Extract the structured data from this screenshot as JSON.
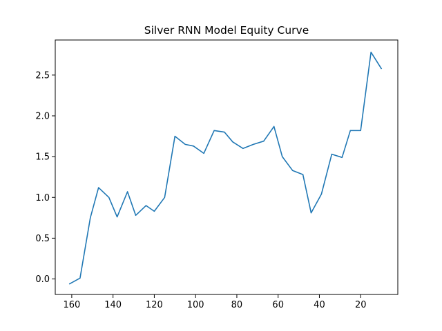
{
  "chart_data": {
    "type": "line",
    "title": "Silver RNN Model Equity Curve",
    "xlabel": "",
    "ylabel": "",
    "x_axis_inverted": true,
    "xlim": [
      168,
      2
    ],
    "ylim": [
      -0.19,
      2.93
    ],
    "grid": false,
    "x_ticks": [
      160,
      140,
      120,
      100,
      80,
      60,
      40,
      20
    ],
    "y_ticks": [
      0.0,
      0.5,
      1.0,
      1.5,
      2.0,
      2.5
    ],
    "x_tick_labels": [
      "160",
      "140",
      "120",
      "100",
      "80",
      "60",
      "40",
      "20"
    ],
    "y_tick_labels": [
      "0.0",
      "0.5",
      "1.0",
      "1.5",
      "2.0",
      "2.5"
    ],
    "series": [
      {
        "color": "#1f77b4",
        "x": [
          161,
          156,
          151,
          147,
          142,
          138,
          133,
          129,
          124,
          120,
          115,
          110,
          105,
          101,
          96,
          91,
          86,
          82,
          77,
          72,
          67,
          62,
          58,
          53,
          48,
          44,
          39,
          34,
          29,
          25,
          20,
          15,
          10
        ],
        "y": [
          -0.06,
          0.01,
          0.75,
          1.12,
          1.0,
          0.76,
          1.07,
          0.78,
          0.9,
          0.83,
          1.0,
          1.75,
          1.65,
          1.63,
          1.54,
          1.82,
          1.8,
          1.68,
          1.6,
          1.65,
          1.69,
          1.87,
          1.5,
          1.33,
          1.28,
          0.81,
          1.04,
          1.53,
          1.49,
          1.82,
          1.82,
          2.78,
          2.58
        ]
      }
    ]
  }
}
